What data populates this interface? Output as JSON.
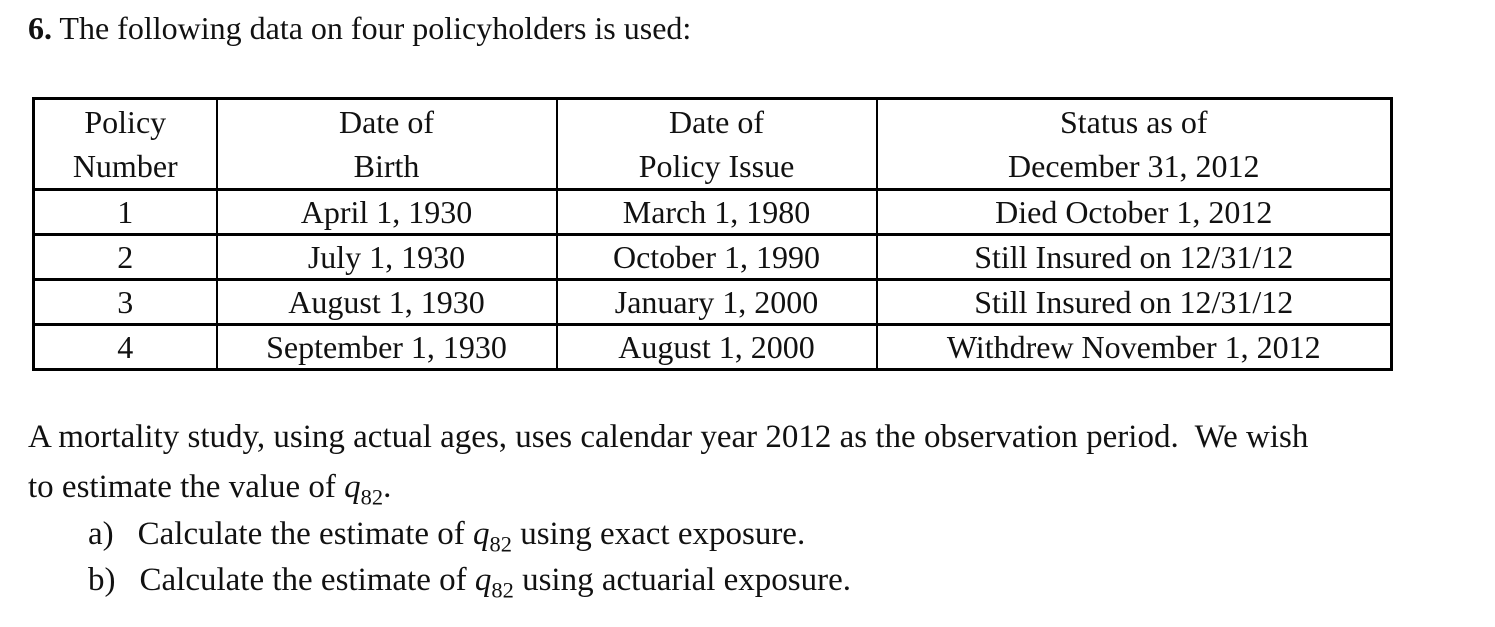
{
  "heading": {
    "number": "6.",
    "text": "The following data on four policyholders is used:"
  },
  "table": {
    "headers": [
      {
        "line1": "Policy",
        "line2": "Number"
      },
      {
        "line1": "Date of",
        "line2": "Birth"
      },
      {
        "line1": "Date of",
        "line2": "Policy Issue"
      },
      {
        "line1": "Status as of",
        "line2": "December 31, 2012"
      }
    ],
    "rows": [
      [
        "1",
        "April 1, 1930",
        "March 1, 1980",
        "Died October 1, 2012"
      ],
      [
        "2",
        "July 1, 1930",
        "October 1, 1990",
        "Still Insured on 12/31/12"
      ],
      [
        "3",
        "August 1, 1930",
        "January 1, 2000",
        "Still Insured on 12/31/12"
      ],
      [
        "4",
        "September 1, 1930",
        "August 1, 2000",
        "Withdrew November 1, 2012"
      ]
    ]
  },
  "paragraph": {
    "line1": "A mortality study, using actual ages, uses calendar year 2012 as the observation period.  We wish",
    "line2_prefix": "to estimate the value of ",
    "q_symbol": "q",
    "q_subscript": "82",
    "line2_suffix": "."
  },
  "questions": [
    {
      "label": "a)",
      "prefix": "Calculate the estimate of ",
      "q_symbol": "q",
      "q_subscript": "82",
      "suffix": " using exact exposure."
    },
    {
      "label": "b)",
      "prefix": "Calculate the estimate of ",
      "q_symbol": "q",
      "q_subscript": "82",
      "suffix": " using actuarial exposure."
    }
  ],
  "colors": {
    "background": "#ffffff",
    "text": "#111111",
    "border": "#000000"
  }
}
